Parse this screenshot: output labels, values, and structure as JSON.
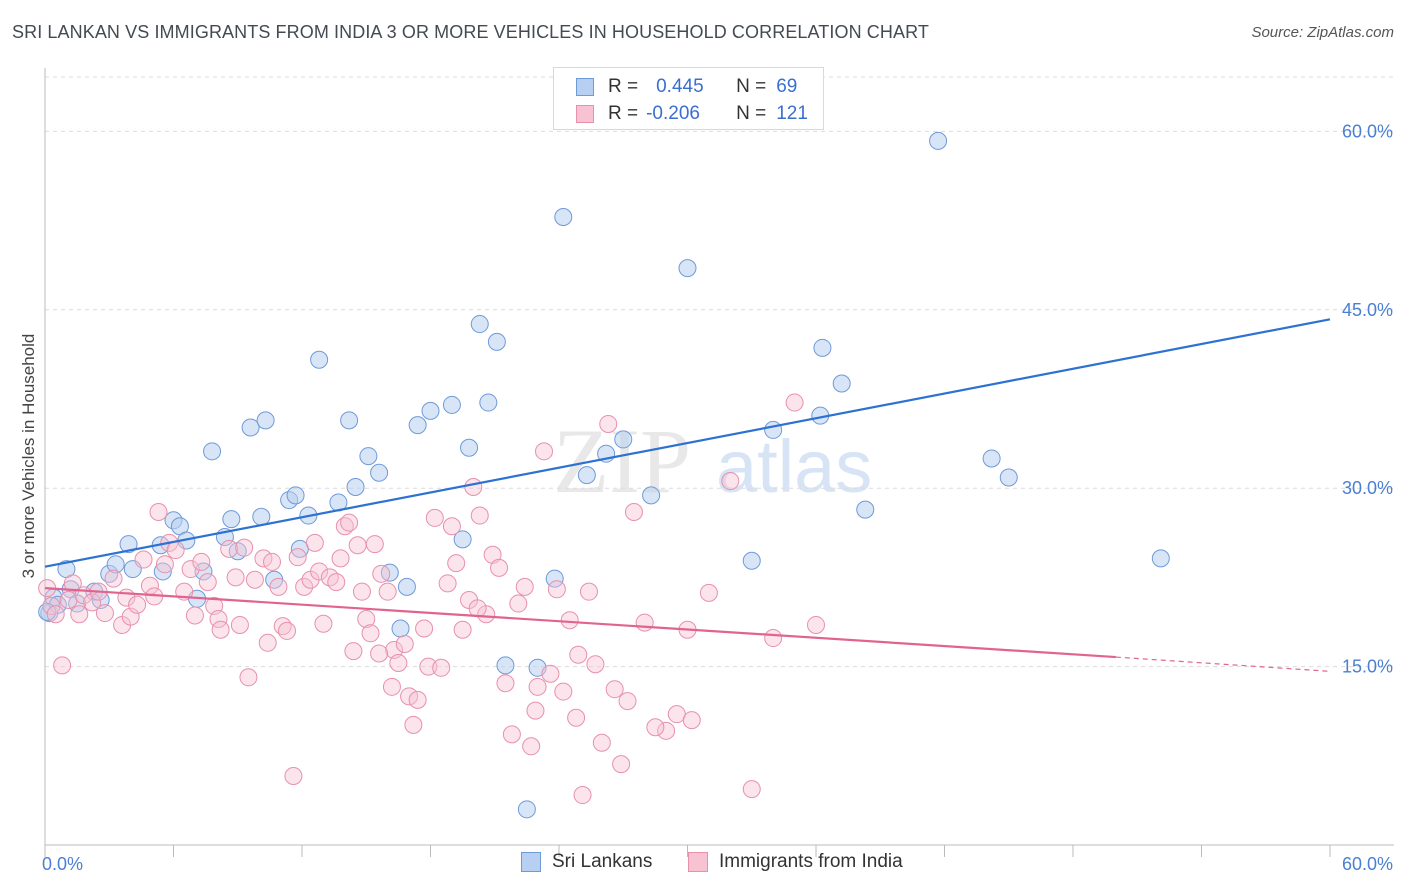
{
  "header": {
    "title": "SRI LANKAN VS IMMIGRANTS FROM INDIA 3 OR MORE VEHICLES IN HOUSEHOLD CORRELATION CHART",
    "source": "Source: ZipAtlas.com"
  },
  "legend": {
    "rows": [
      {
        "r_label": "R =",
        "r_value": "0.445",
        "n_label": "N =",
        "n_value": "69"
      },
      {
        "r_label": "R =",
        "r_value": "-0.206",
        "n_label": "N =",
        "n_value": "121"
      }
    ]
  },
  "bottom_legend": {
    "series_a": "Sri Lankans",
    "series_b": "Immigrants from India"
  },
  "watermark": {
    "zip": "ZIP",
    "atlas": "atlas"
  },
  "colors": {
    "blue_fill": "#b7cff0",
    "blue_stroke": "#6f9ad8",
    "blue_line": "#2d72d2",
    "pink_fill": "#f7c3d3",
    "pink_stroke": "#e890ad",
    "pink_line": "#e0648f",
    "grid": "#dcdcdc",
    "tick_text": "#4a7fd1"
  },
  "chart_data": {
    "type": "scatter",
    "title": "SRI LANKAN VS IMMIGRANTS FROM INDIA 3 OR MORE VEHICLES IN HOUSEHOLD CORRELATION CHART",
    "xlabel": "",
    "ylabel": "3 or more Vehicles in Household",
    "xlim": [
      0,
      60
    ],
    "ylim": [
      0,
      64
    ],
    "x_tick_labels": [
      "0.0%",
      "60.0%"
    ],
    "y_ticks": [
      15,
      30,
      45,
      60
    ],
    "y_tick_labels": [
      "15.0%",
      "30.0%",
      "45.0%",
      "60.0%"
    ],
    "grid": true,
    "series": [
      {
        "name": "Sri Lankans",
        "r": 0.445,
        "n": 69,
        "trend": {
          "x0": 0,
          "y0": 23.4,
          "x1": 60,
          "y1": 44.2
        },
        "points": [
          [
            0.2,
            19.5
          ],
          [
            0.4,
            20.8
          ],
          [
            0.6,
            20.2
          ],
          [
            1.0,
            23.2
          ],
          [
            1.2,
            21.5
          ],
          [
            1.5,
            20.3
          ],
          [
            2.3,
            21.3
          ],
          [
            2.6,
            20.6
          ],
          [
            3.0,
            22.8
          ],
          [
            3.3,
            23.6
          ],
          [
            3.9,
            25.3
          ],
          [
            4.1,
            23.2
          ],
          [
            5.4,
            25.2
          ],
          [
            5.5,
            23.0
          ],
          [
            6.0,
            27.3
          ],
          [
            6.3,
            26.8
          ],
          [
            6.6,
            25.6
          ],
          [
            7.1,
            20.7
          ],
          [
            7.4,
            23.0
          ],
          [
            7.8,
            33.1
          ],
          [
            8.4,
            25.9
          ],
          [
            8.7,
            27.4
          ],
          [
            9.0,
            24.7
          ],
          [
            9.6,
            35.1
          ],
          [
            10.1,
            27.6
          ],
          [
            10.3,
            35.7
          ],
          [
            10.7,
            22.3
          ],
          [
            11.4,
            29.0
          ],
          [
            11.7,
            29.4
          ],
          [
            11.9,
            24.9
          ],
          [
            12.3,
            27.7
          ],
          [
            12.8,
            40.8
          ],
          [
            13.7,
            28.8
          ],
          [
            14.2,
            35.7
          ],
          [
            14.5,
            30.1
          ],
          [
            15.1,
            32.7
          ],
          [
            15.6,
            31.3
          ],
          [
            16.1,
            22.9
          ],
          [
            16.6,
            18.2
          ],
          [
            16.9,
            21.7
          ],
          [
            17.4,
            35.3
          ],
          [
            18.0,
            36.5
          ],
          [
            19.0,
            37.0
          ],
          [
            19.5,
            25.7
          ],
          [
            19.8,
            33.4
          ],
          [
            20.3,
            43.8
          ],
          [
            20.7,
            37.2
          ],
          [
            21.1,
            42.3
          ],
          [
            21.5,
            15.1
          ],
          [
            22.5,
            3.0
          ],
          [
            23.0,
            14.9
          ],
          [
            23.8,
            22.4
          ],
          [
            24.2,
            52.8
          ],
          [
            25.3,
            31.1
          ],
          [
            26.2,
            32.9
          ],
          [
            27.0,
            34.1
          ],
          [
            28.3,
            29.4
          ],
          [
            30.0,
            48.5
          ],
          [
            33.0,
            23.9
          ],
          [
            34.0,
            34.9
          ],
          [
            36.2,
            36.1
          ],
          [
            36.3,
            41.8
          ],
          [
            37.2,
            38.8
          ],
          [
            38.3,
            28.2
          ],
          [
            41.7,
            59.2
          ],
          [
            44.2,
            32.5
          ],
          [
            45.0,
            30.9
          ],
          [
            52.1,
            24.1
          ],
          [
            0.1,
            19.6
          ]
        ]
      },
      {
        "name": "Immigrants from India",
        "r": -0.206,
        "n": 121,
        "trend": {
          "x0": 0,
          "y0": 21.6,
          "x1": 50,
          "y1": 15.8
        },
        "trend_dashed": {
          "x0": 50,
          "y0": 15.8,
          "x1": 60,
          "y1": 14.6
        },
        "points": [
          [
            0.1,
            21.6
          ],
          [
            0.3,
            20.1
          ],
          [
            0.5,
            19.4
          ],
          [
            0.8,
            15.1
          ],
          [
            1.1,
            20.6
          ],
          [
            1.3,
            22.0
          ],
          [
            1.6,
            19.4
          ],
          [
            1.8,
            21.0
          ],
          [
            2.2,
            20.4
          ],
          [
            2.5,
            21.3
          ],
          [
            2.8,
            19.5
          ],
          [
            3.2,
            22.4
          ],
          [
            3.6,
            18.5
          ],
          [
            3.8,
            20.8
          ],
          [
            4.0,
            19.2
          ],
          [
            4.3,
            20.2
          ],
          [
            4.6,
            24.0
          ],
          [
            4.9,
            21.8
          ],
          [
            5.1,
            20.9
          ],
          [
            5.3,
            28.0
          ],
          [
            5.6,
            23.6
          ],
          [
            5.8,
            25.4
          ],
          [
            6.1,
            24.8
          ],
          [
            6.5,
            21.3
          ],
          [
            6.8,
            23.2
          ],
          [
            7.0,
            19.3
          ],
          [
            7.3,
            23.8
          ],
          [
            7.6,
            22.1
          ],
          [
            7.9,
            20.1
          ],
          [
            8.1,
            19.0
          ],
          [
            8.2,
            18.1
          ],
          [
            8.6,
            24.9
          ],
          [
            8.9,
            22.5
          ],
          [
            9.1,
            18.5
          ],
          [
            9.3,
            25.0
          ],
          [
            9.5,
            14.1
          ],
          [
            9.8,
            22.3
          ],
          [
            10.2,
            24.1
          ],
          [
            10.4,
            17.0
          ],
          [
            10.6,
            23.8
          ],
          [
            10.9,
            21.7
          ],
          [
            11.1,
            18.4
          ],
          [
            11.3,
            18.0
          ],
          [
            11.6,
            5.8
          ],
          [
            11.8,
            24.2
          ],
          [
            12.1,
            21.7
          ],
          [
            12.4,
            22.3
          ],
          [
            12.6,
            25.4
          ],
          [
            12.8,
            23.0
          ],
          [
            13.0,
            18.6
          ],
          [
            13.3,
            22.5
          ],
          [
            13.6,
            22.1
          ],
          [
            13.8,
            24.1
          ],
          [
            14.0,
            26.8
          ],
          [
            14.2,
            27.1
          ],
          [
            14.4,
            16.3
          ],
          [
            14.6,
            25.2
          ],
          [
            14.8,
            21.3
          ],
          [
            15.0,
            19.0
          ],
          [
            15.2,
            17.8
          ],
          [
            15.4,
            25.3
          ],
          [
            15.7,
            22.8
          ],
          [
            16.0,
            21.3
          ],
          [
            16.2,
            13.3
          ],
          [
            16.3,
            16.4
          ],
          [
            16.5,
            15.3
          ],
          [
            16.8,
            16.9
          ],
          [
            17.0,
            12.5
          ],
          [
            17.2,
            10.1
          ],
          [
            17.4,
            12.2
          ],
          [
            17.7,
            18.2
          ],
          [
            17.9,
            15.0
          ],
          [
            18.2,
            27.5
          ],
          [
            18.5,
            14.9
          ],
          [
            18.8,
            22.0
          ],
          [
            19.0,
            26.8
          ],
          [
            19.2,
            23.7
          ],
          [
            19.5,
            18.1
          ],
          [
            19.8,
            20.6
          ],
          [
            20.0,
            30.1
          ],
          [
            20.3,
            27.7
          ],
          [
            20.6,
            19.4
          ],
          [
            20.9,
            24.4
          ],
          [
            21.2,
            23.3
          ],
          [
            21.5,
            13.6
          ],
          [
            21.8,
            9.3
          ],
          [
            22.1,
            20.3
          ],
          [
            22.4,
            21.7
          ],
          [
            22.7,
            8.3
          ],
          [
            23.0,
            13.3
          ],
          [
            23.3,
            33.1
          ],
          [
            23.6,
            14.4
          ],
          [
            23.9,
            21.5
          ],
          [
            24.2,
            12.9
          ],
          [
            24.5,
            18.9
          ],
          [
            24.8,
            10.7
          ],
          [
            25.1,
            4.2
          ],
          [
            25.4,
            21.3
          ],
          [
            25.7,
            15.2
          ],
          [
            26.0,
            8.6
          ],
          [
            26.3,
            35.4
          ],
          [
            26.6,
            13.1
          ],
          [
            26.9,
            6.8
          ],
          [
            27.2,
            12.1
          ],
          [
            27.5,
            28.0
          ],
          [
            28.0,
            18.7
          ],
          [
            29.0,
            9.6
          ],
          [
            29.5,
            11.0
          ],
          [
            30.0,
            18.1
          ],
          [
            31.0,
            21.2
          ],
          [
            32.0,
            30.6
          ],
          [
            33.0,
            4.7
          ],
          [
            34.0,
            17.4
          ],
          [
            35.0,
            37.2
          ],
          [
            36.0,
            18.5
          ],
          [
            28.5,
            9.9
          ],
          [
            22.9,
            11.3
          ],
          [
            20.2,
            19.9
          ],
          [
            24.9,
            16.0
          ],
          [
            15.6,
            16.1
          ],
          [
            30.2,
            10.5
          ]
        ]
      }
    ]
  }
}
